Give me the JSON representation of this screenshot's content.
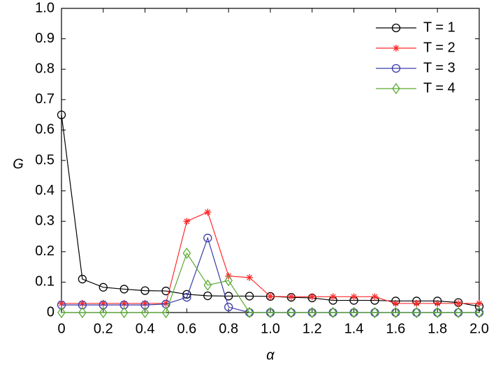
{
  "chart_data": {
    "type": "line",
    "xlabel": "α",
    "ylabel": "G",
    "x": [
      0,
      0.1,
      0.2,
      0.3,
      0.4,
      0.5,
      0.6,
      0.7,
      0.8,
      0.9,
      1.0,
      1.1,
      1.2,
      1.3,
      1.4,
      1.5,
      1.6,
      1.7,
      1.8,
      1.9,
      2.0
    ],
    "series": [
      {
        "name": "T = 1",
        "color": "#000000",
        "marker": "circle",
        "values": [
          0.65,
          0.11,
          0.083,
          0.077,
          0.072,
          0.071,
          0.06,
          0.055,
          0.054,
          0.054,
          0.053,
          0.05,
          0.048,
          0.04,
          0.04,
          0.04,
          0.038,
          0.038,
          0.038,
          0.033,
          0.02
        ]
      },
      {
        "name": "T = 2",
        "color": "#ff2a2a",
        "marker": "star",
        "values": [
          0.03,
          0.03,
          0.03,
          0.03,
          0.03,
          0.03,
          0.3,
          0.33,
          0.12,
          0.115,
          0.053,
          0.052,
          0.052,
          0.052,
          0.052,
          0.052,
          0.03,
          0.03,
          0.03,
          0.03,
          0.03
        ]
      },
      {
        "name": "T = 3",
        "color": "#3a3aa8",
        "marker": "circle",
        "values": [
          0.025,
          0.025,
          0.025,
          0.025,
          0.025,
          0.028,
          0.05,
          0.245,
          0.018,
          0,
          0,
          0,
          0,
          0,
          0,
          0,
          0,
          0,
          0,
          0,
          0
        ]
      },
      {
        "name": "T = 4",
        "color": "#5aaa32",
        "marker": "diamond",
        "values": [
          0,
          0,
          0,
          0,
          0,
          0,
          0.195,
          0.09,
          0.105,
          0,
          0,
          0,
          0,
          0,
          0,
          0,
          0,
          0,
          0,
          0,
          0
        ]
      }
    ],
    "xlim": [
      0,
      2
    ],
    "xticks": [
      0,
      0.2,
      0.4,
      0.6,
      0.8,
      {
        "value": 1,
        "label": "1.0"
      },
      1.2,
      1.4,
      1.6,
      1.8,
      {
        "value": 2,
        "label": "2.0"
      }
    ],
    "ylim": [
      0,
      1
    ],
    "yticks": [
      0,
      0.1,
      0.2,
      0.3,
      0.4,
      0.5,
      0.6,
      0.7,
      0.8,
      0.9,
      {
        "value": 1,
        "label": "1.0"
      }
    ],
    "grid": false,
    "legend": "upper right"
  }
}
